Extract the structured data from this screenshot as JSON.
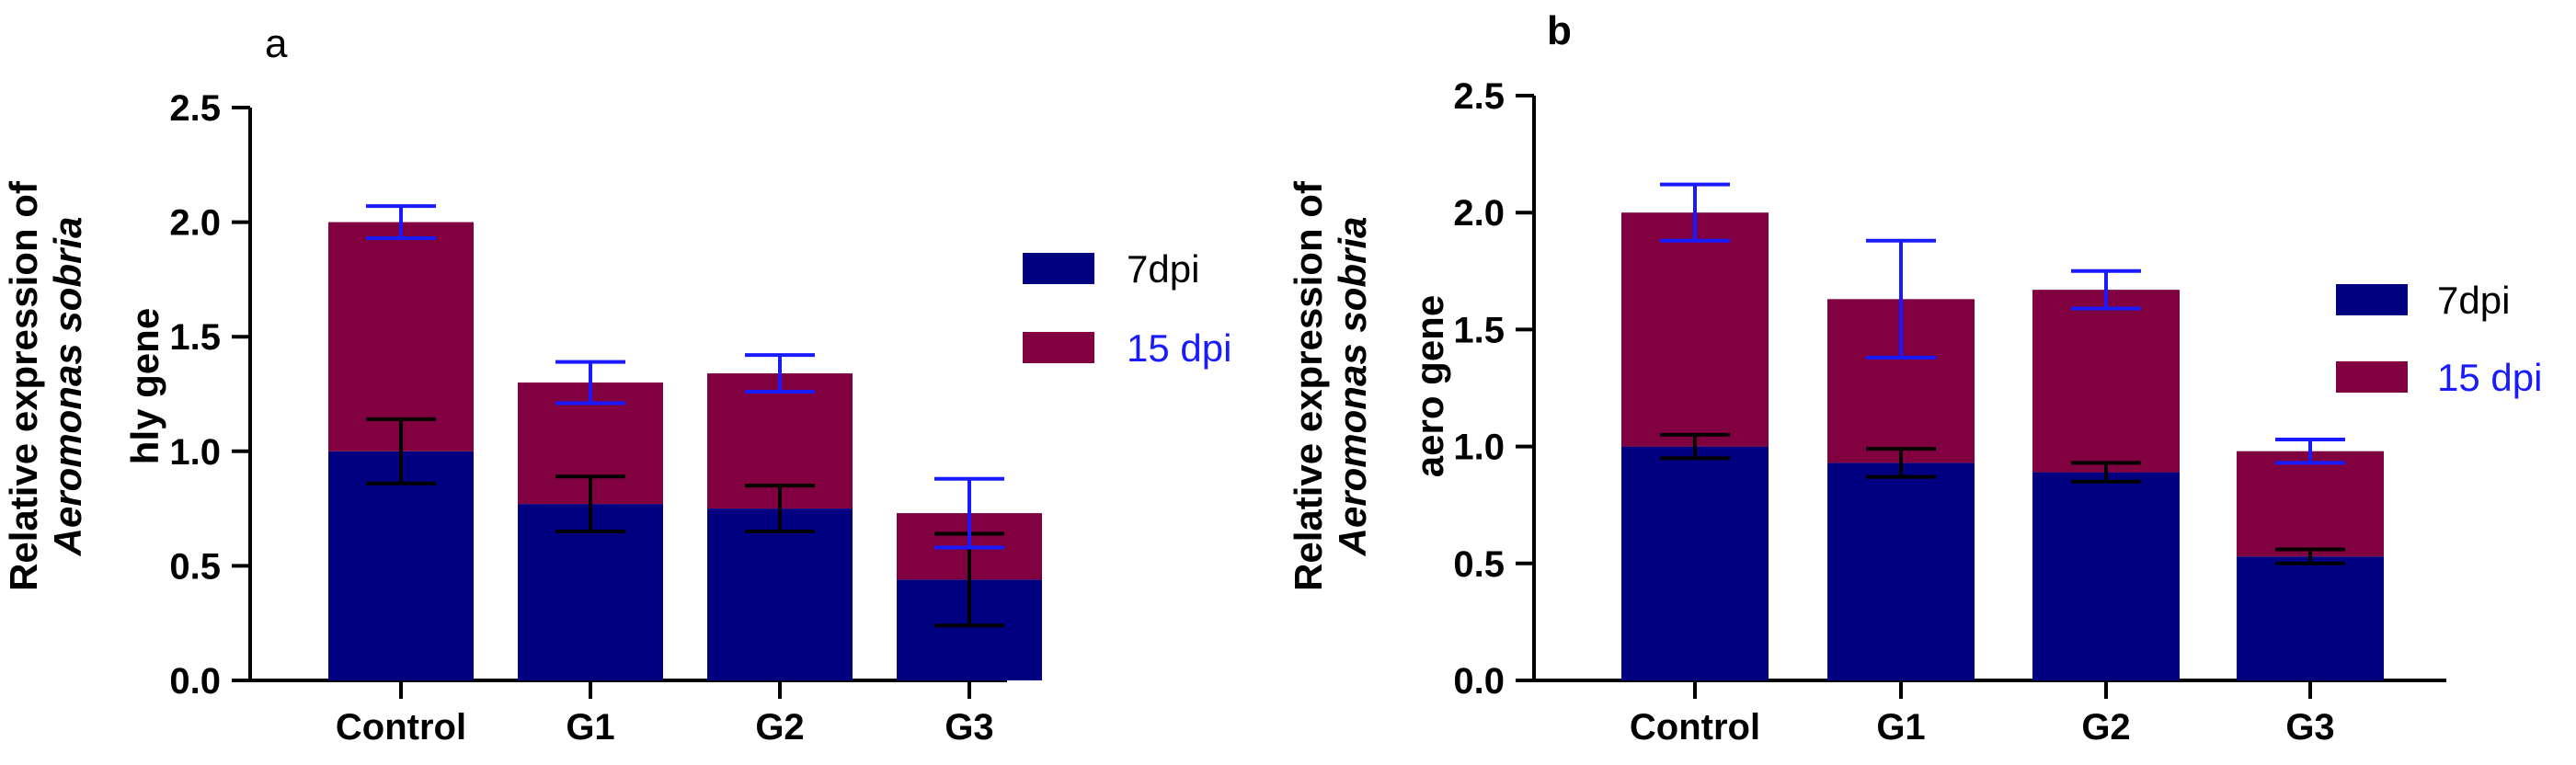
{
  "chart_data": [
    {
      "type": "bar",
      "stacked": true,
      "panel_label": "a",
      "ylabel_lines": [
        "Relative expression of",
        "Aeromonas sobria",
        "hly gene"
      ],
      "ylim": [
        0,
        2.5
      ],
      "yticks": [
        "0.0",
        "0.5",
        "1.0",
        "1.5",
        "2.0",
        "2.5"
      ],
      "categories": [
        "Control",
        "G1",
        "G2",
        "G3"
      ],
      "series": [
        {
          "name": "7dpi",
          "color": "#000080",
          "values": [
            1.0,
            0.77,
            0.75,
            0.44
          ],
          "errors": [
            0.14,
            0.12,
            0.1,
            0.2
          ],
          "error_color": "#000000"
        },
        {
          "name": "15 dpi",
          "color": "#800040",
          "values": [
            1.0,
            0.53,
            0.59,
            0.29
          ],
          "errors": [
            0.07,
            0.09,
            0.08,
            0.15
          ],
          "error_color": "#1a1aff"
        }
      ],
      "legend_position": "right",
      "legend_label_colors": [
        "#000000",
        "#1a1aff"
      ]
    },
    {
      "type": "bar",
      "stacked": true,
      "panel_label": "b",
      "ylabel_lines": [
        "Relative expression of",
        "Aeromonas sobria",
        "aero gene"
      ],
      "ylim": [
        0,
        2.5
      ],
      "yticks": [
        "0.0",
        "0.5",
        "1.0",
        "1.5",
        "2.0",
        "2.5"
      ],
      "categories": [
        "Control",
        "G1",
        "G2",
        "G3"
      ],
      "series": [
        {
          "name": "7dpi",
          "color": "#000080",
          "values": [
            1.0,
            0.93,
            0.89,
            0.53
          ],
          "errors": [
            0.05,
            0.06,
            0.04,
            0.03
          ],
          "error_color": "#000000"
        },
        {
          "name": "15 dpi",
          "color": "#800040",
          "values": [
            1.0,
            0.7,
            0.78,
            0.45
          ],
          "errors": [
            0.12,
            0.25,
            0.08,
            0.05
          ],
          "error_color": "#1a1aff"
        }
      ],
      "legend_position": "right",
      "legend_label_colors": [
        "#000000",
        "#1a1aff"
      ]
    }
  ]
}
